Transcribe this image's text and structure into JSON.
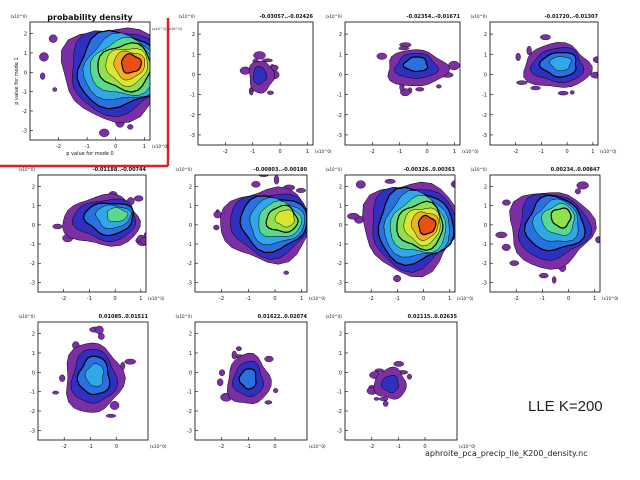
{
  "figure": {
    "method_label": "LLE K=200",
    "filename": "aphroite_pca_precip_lle_K200_density.nc"
  },
  "chart_data": [
    {
      "type": "contour",
      "title": "probability density",
      "xlabel": "p value for mode 0",
      "ylabel": "p value for mode 1",
      "xlim": [
        -3,
        1.2
      ],
      "ylim": [
        -3.5,
        2.6
      ],
      "xticks": [
        -2,
        -1,
        0,
        1
      ],
      "yticks": [
        2,
        1,
        0,
        -1,
        -2,
        -3
      ],
      "x_unit": "(x10^0)",
      "y_unit": "(x10^0)",
      "legend_note": "(x10^1) (x10^0)",
      "highlighted": true,
      "blob": {
        "cx": 0.0,
        "cy": 0.0,
        "rx": 1.9,
        "ry": 2.4,
        "peak_x": 0.6,
        "peak_y": 0.5,
        "levels": 9
      }
    },
    {
      "type": "contour",
      "title": "-0.03057..-0.02426",
      "xlim": [
        -3,
        1.2
      ],
      "ylim": [
        -3.5,
        2.6
      ],
      "xticks": [
        -2,
        -1,
        0,
        1
      ],
      "yticks": [
        2,
        1,
        0,
        -1,
        -2,
        -3
      ],
      "x_unit": "(x10^0)",
      "y_unit": "(x10^0)",
      "blob": {
        "cx": -0.7,
        "cy": -0.1,
        "rx": 0.45,
        "ry": 0.8,
        "peak_x": -0.8,
        "peak_y": 0.0,
        "levels": 2
      }
    },
    {
      "type": "contour",
      "title": "-0.02354..-0.01671",
      "xlim": [
        -3,
        1.2
      ],
      "ylim": [
        -3.5,
        2.6
      ],
      "xticks": [
        -2,
        -1,
        0,
        1
      ],
      "yticks": [
        2,
        1,
        0,
        -1,
        -2,
        -3
      ],
      "x_unit": "(x10^0)",
      "y_unit": "(x10^0)",
      "blob": {
        "cx": -0.4,
        "cy": 0.3,
        "rx": 1.1,
        "ry": 0.9,
        "peak_x": -0.4,
        "peak_y": 0.6,
        "levels": 3
      }
    },
    {
      "type": "contour",
      "title": "-0.01720..-0.01307",
      "xlim": [
        -3,
        1.2
      ],
      "ylim": [
        -3.5,
        2.6
      ],
      "xticks": [
        -2,
        -1,
        0,
        1
      ],
      "yticks": [
        2,
        1,
        0,
        -1,
        -2,
        -3
      ],
      "x_unit": "(x10^0)",
      "y_unit": "(x10^0)",
      "blob": {
        "cx": -0.4,
        "cy": 0.4,
        "rx": 1.3,
        "ry": 1.1,
        "peak_x": -0.2,
        "peak_y": 0.6,
        "levels": 4
      }
    },
    {
      "type": "contour",
      "title": "-0.01188..-0.00744",
      "xlim": [
        -3,
        1.2
      ],
      "ylim": [
        -3.5,
        2.6
      ],
      "xticks": [
        -2,
        -1,
        0,
        1
      ],
      "yticks": [
        2,
        1,
        0,
        -1,
        -2,
        -3
      ],
      "x_unit": "(x10^0)",
      "y_unit": "(x10^0)",
      "blob": {
        "cx": -0.5,
        "cy": 0.2,
        "rx": 1.5,
        "ry": 1.3,
        "peak_x": 0.2,
        "peak_y": 0.6,
        "levels": 5
      }
    },
    {
      "type": "contour",
      "title": "-0.00803..-0.00180",
      "xlim": [
        -3,
        1.2
      ],
      "ylim": [
        -3.5,
        2.6
      ],
      "xticks": [
        -2,
        -1,
        0,
        1
      ],
      "yticks": [
        2,
        1,
        0,
        -1,
        -2,
        -3
      ],
      "x_unit": "(x10^0)",
      "y_unit": "(x10^0)",
      "blob": {
        "cx": -0.3,
        "cy": 0.0,
        "rx": 1.7,
        "ry": 1.9,
        "peak_x": 0.5,
        "peak_y": 0.4,
        "levels": 7
      }
    },
    {
      "type": "contour",
      "title": "-0.00326..0.00363",
      "xlim": [
        -3,
        1.2
      ],
      "ylim": [
        -3.5,
        2.6
      ],
      "xticks": [
        -2,
        -1,
        0,
        1
      ],
      "yticks": [
        2,
        1,
        0,
        -1,
        -2,
        -3
      ],
      "x_unit": "(x10^0)",
      "y_unit": "(x10^0)",
      "blob": {
        "cx": -0.5,
        "cy": -0.1,
        "rx": 1.8,
        "ry": 2.4,
        "peak_x": 0.2,
        "peak_y": 0.0,
        "levels": 9
      }
    },
    {
      "type": "contour",
      "title": "0.00234..0.00847",
      "xlim": [
        -3,
        1.2
      ],
      "ylim": [
        -3.5,
        2.6
      ],
      "xticks": [
        -2,
        -1,
        0,
        1
      ],
      "yticks": [
        2,
        1,
        0,
        -1,
        -2,
        -3
      ],
      "x_unit": "(x10^0)",
      "y_unit": "(x10^0)",
      "blob": {
        "cx": -0.7,
        "cy": -0.2,
        "rx": 1.6,
        "ry": 2.0,
        "peak_x": -0.2,
        "peak_y": 0.5,
        "levels": 6
      }
    },
    {
      "type": "contour",
      "title": "0.01085..0.01511",
      "xlim": [
        -3,
        1.2
      ],
      "ylim": [
        -3.5,
        2.6
      ],
      "xticks": [
        -2,
        -1,
        0
      ],
      "yticks": [
        2,
        1,
        0,
        -1,
        -2,
        -3
      ],
      "x_unit": "(x10^0)",
      "y_unit": "(x10^0)",
      "blob": {
        "cx": -0.9,
        "cy": -0.3,
        "rx": 1.1,
        "ry": 1.8,
        "peak_x": -0.8,
        "peak_y": -0.1,
        "levels": 4
      }
    },
    {
      "type": "contour",
      "title": "0.01622..0.02074",
      "xlim": [
        -3,
        1.2
      ],
      "ylim": [
        -3.5,
        2.6
      ],
      "xticks": [
        -2,
        -1,
        0
      ],
      "yticks": [
        2,
        1,
        0,
        -1,
        -2,
        -3
      ],
      "x_unit": "(x10^0)",
      "y_unit": "(x10^0)",
      "blob": {
        "cx": -1.0,
        "cy": -0.4,
        "rx": 0.8,
        "ry": 1.3,
        "peak_x": -1.0,
        "peak_y": -0.3,
        "levels": 3
      }
    },
    {
      "type": "contour",
      "title": "0.02115..0.02635",
      "xlim": [
        -3,
        1.2
      ],
      "ylim": [
        -3.5,
        2.6
      ],
      "xticks": [
        -2,
        -1,
        0
      ],
      "yticks": [
        2,
        1,
        0,
        -1,
        -2,
        -3
      ],
      "x_unit": "(x10^0)",
      "y_unit": "(x10^0)",
      "blob": {
        "cx": -1.3,
        "cy": -0.6,
        "rx": 0.6,
        "ry": 0.8,
        "peak_x": -1.3,
        "peak_y": -0.6,
        "levels": 2
      }
    }
  ]
}
